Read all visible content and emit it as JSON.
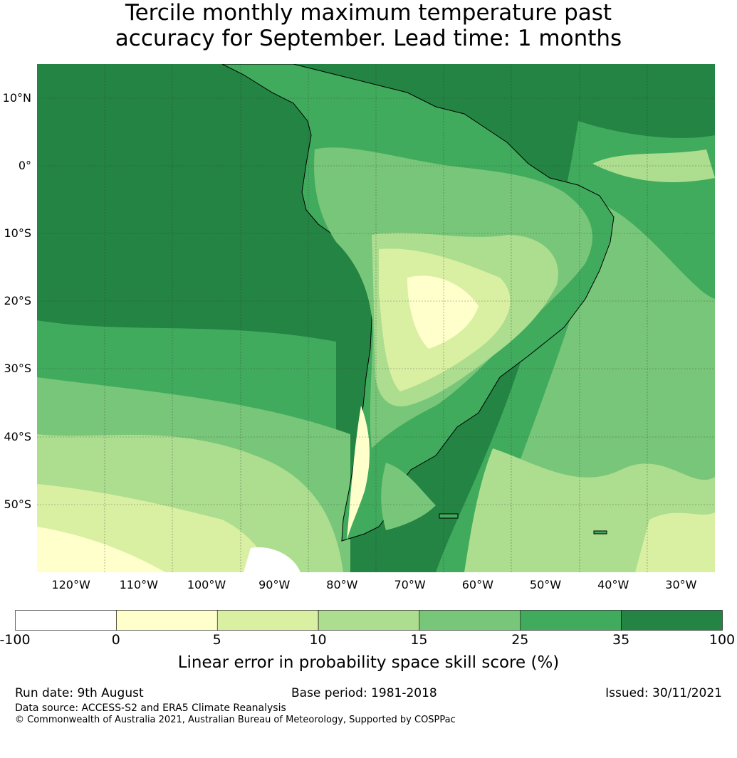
{
  "title_lines": [
    "Tercile monthly maximum temperature past",
    "accuracy for September. Lead time: 1 months"
  ],
  "map": {
    "lat_labels": [
      {
        "text": "10°N",
        "lat": 10
      },
      {
        "text": "0°",
        "lat": 0
      },
      {
        "text": "10°S",
        "lat": -10
      },
      {
        "text": "20°S",
        "lat": -20
      },
      {
        "text": "30°S",
        "lat": -30
      },
      {
        "text": "40°S",
        "lat": -40
      },
      {
        "text": "50°S",
        "lat": -50
      }
    ],
    "lon_labels": [
      {
        "text": "120°W",
        "lon": -120
      },
      {
        "text": "110°W",
        "lon": -110
      },
      {
        "text": "100°W",
        "lon": -100
      },
      {
        "text": "90°W",
        "lon": -90
      },
      {
        "text": "80°W",
        "lon": -80
      },
      {
        "text": "70°W",
        "lon": -70
      },
      {
        "text": "60°W",
        "lon": -60
      },
      {
        "text": "50°W",
        "lon": -50
      },
      {
        "text": "40°W",
        "lon": -40
      },
      {
        "text": "30°W",
        "lon": -30
      }
    ],
    "lon_range": [
      -125,
      -25
    ],
    "lat_range": [
      -60,
      15
    ]
  },
  "colorbar": {
    "ticks": [
      "-100",
      "0",
      "5",
      "10",
      "15",
      "25",
      "35",
      "100"
    ],
    "colors": [
      "#ffffff",
      "#ffffcc",
      "#d9f0a3",
      "#addd8e",
      "#78c679",
      "#41ab5d",
      "#238443"
    ],
    "title": "Linear error in probability space skill score (%)"
  },
  "footer": {
    "run_date": "Run date: 9th August",
    "base_period": "Base period: 1981-2018",
    "issued": "Issued: 30/11/2021",
    "data_source": "Data source: ACCESS-S2 and ERA5 Climate Reanalysis",
    "copyright": "© Commonwealth of Australia 2021, Australian Bureau of Meteorology, Supported by COSPPac"
  }
}
